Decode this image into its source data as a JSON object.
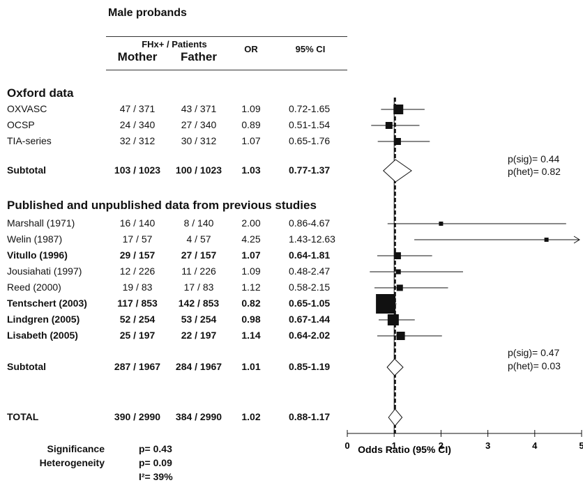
{
  "header": {
    "title": "Male probands",
    "fhx_label": "FHx+  /  Patients",
    "mother": "Mother",
    "father": "Father",
    "or": "OR",
    "ci": "95% CI"
  },
  "sections": [
    {
      "title": "Oxford data",
      "rows": [
        {
          "study": "OXVASC",
          "mother": "47 / 371",
          "father": "43 / 371",
          "or": "1.09",
          "ci": "0.72-1.65",
          "bold": false
        },
        {
          "study": "OCSP",
          "mother": "24 / 340",
          "father": "27 / 340",
          "or": "0.89",
          "ci": "0.51-1.54",
          "bold": false
        },
        {
          "study": "TIA-series",
          "mother": "32 / 312",
          "father": "30 / 312",
          "or": "1.07",
          "ci": "0.65-1.76",
          "bold": false
        }
      ],
      "subtotal": {
        "label": "Subtotal",
        "mother": "103 / 1023",
        "father": "100 / 1023",
        "or": "1.03",
        "ci": "0.77-1.37"
      },
      "psig": "p(sig)= 0.44",
      "phet": "p(het)= 0.82"
    },
    {
      "title": "Published and unpublished data from previous studies",
      "rows": [
        {
          "study": "Marshall (1971)",
          "mother": "16 / 140",
          "father": "8 / 140",
          "or": "2.00",
          "ci": "0.86-4.67",
          "bold": false
        },
        {
          "study": "Welin (1987)",
          "mother": "17 / 57",
          "father": "4 / 57",
          "or": "4.25",
          "ci": "1.43-12.63",
          "bold": false
        },
        {
          "study": "Vitullo (1996)",
          "mother": "29 / 157",
          "father": "27 / 157",
          "or": "1.07",
          "ci": "0.64-1.81",
          "bold": true
        },
        {
          "study": "Jousiahati (1997)",
          "mother": "12 / 226",
          "father": "11 / 226",
          "or": "1.09",
          "ci": "0.48-2.47",
          "bold": false
        },
        {
          "study": "Reed (2000)",
          "mother": "19 / 83",
          "father": "17 / 83",
          "or": "1.12",
          "ci": "0.58-2.15",
          "bold": false
        },
        {
          "study": "Tentschert (2003)",
          "mother": "117 / 853",
          "father": "142 / 853",
          "or": "0.82",
          "ci": "0.65-1.05",
          "bold": true
        },
        {
          "study": "Lindgren (2005)",
          "mother": "52 / 254",
          "father": "53 / 254",
          "or": "0.98",
          "ci": "0.67-1.44",
          "bold": true
        },
        {
          "study": "Lisabeth (2005)",
          "mother": "25 / 197",
          "father": "22 / 197",
          "or": "1.14",
          "ci": "0.64-2.02",
          "bold": true
        }
      ],
      "subtotal": {
        "label": "Subtotal",
        "mother": "287 / 1967",
        "father": "284 / 1967",
        "or": "1.01",
        "ci": "0.85-1.19"
      },
      "psig": "p(sig)= 0.47",
      "phet": "p(het)= 0.03"
    }
  ],
  "total": {
    "label": "TOTAL",
    "mother": "390 / 2990",
    "father": "384 / 2990",
    "or": "1.02",
    "ci": "0.88-1.17"
  },
  "footer": {
    "significance_label": "Significance",
    "significance_value": "p= 0.43",
    "heterogeneity_label": "Heterogeneity",
    "heterogeneity_value": "p= 0.09",
    "i2": "I²= 39%"
  },
  "chart_data": {
    "type": "forest",
    "xlabel": "Odds Ratio (95% CI)",
    "xlim": [
      0,
      5
    ],
    "xticks": [
      0,
      1,
      2,
      3,
      4,
      5
    ],
    "null_line": 1,
    "pooled_line": 1.02,
    "studies": [
      {
        "label": "OXVASC",
        "or": 1.09,
        "lo": 0.72,
        "hi": 1.65,
        "weight": 1.4
      },
      {
        "label": "OCSP",
        "or": 0.89,
        "lo": 0.51,
        "hi": 1.54,
        "weight": 1.0
      },
      {
        "label": "TIA-series",
        "or": 1.07,
        "lo": 0.65,
        "hi": 1.76,
        "weight": 1.0
      },
      {
        "label": "Marshall (1971)",
        "or": 2.0,
        "lo": 0.86,
        "hi": 4.67,
        "weight": 0.5
      },
      {
        "label": "Welin (1987)",
        "or": 4.25,
        "lo": 1.43,
        "hi": 12.63,
        "weight": 0.3
      },
      {
        "label": "Vitullo (1996)",
        "or": 1.07,
        "lo": 0.64,
        "hi": 1.81,
        "weight": 1.0
      },
      {
        "label": "Jousiahati (1997)",
        "or": 1.09,
        "lo": 0.48,
        "hi": 2.47,
        "weight": 0.7
      },
      {
        "label": "Reed (2000)",
        "or": 1.12,
        "lo": 0.58,
        "hi": 2.15,
        "weight": 0.9
      },
      {
        "label": "Tentschert (2003)",
        "or": 0.82,
        "lo": 0.65,
        "hi": 1.05,
        "weight": 2.8
      },
      {
        "label": "Lindgren (2005)",
        "or": 0.98,
        "lo": 0.67,
        "hi": 1.44,
        "weight": 1.6
      },
      {
        "label": "Lisabeth (2005)",
        "or": 1.14,
        "lo": 0.64,
        "hi": 2.02,
        "weight": 1.2
      }
    ],
    "pooled": [
      {
        "label": "Subtotal (Oxford data)",
        "or": 1.03,
        "lo": 0.77,
        "hi": 1.37
      },
      {
        "label": "Subtotal (previous studies)",
        "or": 1.01,
        "lo": 0.85,
        "hi": 1.19
      },
      {
        "label": "TOTAL",
        "or": 1.02,
        "lo": 0.88,
        "hi": 1.17
      }
    ]
  }
}
